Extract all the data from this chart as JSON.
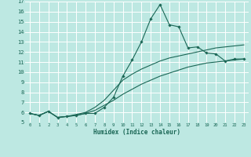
{
  "xlabel": "Humidex (Indice chaleur)",
  "bg_color": "#bde8e2",
  "grid_color": "#ffffff",
  "line_color": "#1a6655",
  "xlim": [
    -0.5,
    23.5
  ],
  "ylim": [
    5,
    17
  ],
  "xticks": [
    0,
    1,
    2,
    3,
    4,
    5,
    6,
    7,
    8,
    9,
    10,
    11,
    12,
    13,
    14,
    15,
    16,
    17,
    18,
    19,
    20,
    21,
    22,
    23
  ],
  "yticks": [
    5,
    6,
    7,
    8,
    9,
    10,
    11,
    12,
    13,
    14,
    15,
    16,
    17
  ],
  "line1_x": [
    0,
    1,
    2,
    3,
    4,
    5,
    6,
    7,
    8,
    9,
    10,
    11,
    12,
    13,
    14,
    15,
    16,
    17,
    18,
    19,
    20,
    21,
    22,
    23
  ],
  "line1_y": [
    5.9,
    5.7,
    6.1,
    5.5,
    5.6,
    5.7,
    5.9,
    5.9,
    6.5,
    7.5,
    9.6,
    11.2,
    13.0,
    15.3,
    16.7,
    14.7,
    14.5,
    12.4,
    12.5,
    11.9,
    11.8,
    11.1,
    11.3,
    11.3
  ],
  "line2_x": [
    0,
    1,
    2,
    3,
    4,
    5,
    6,
    7,
    8,
    9,
    10,
    11,
    12,
    13,
    14,
    15,
    16,
    17,
    18,
    19,
    20,
    21,
    22,
    23
  ],
  "line2_y": [
    5.9,
    5.7,
    6.1,
    5.5,
    5.6,
    5.8,
    6.0,
    6.5,
    7.2,
    8.2,
    9.2,
    9.8,
    10.3,
    10.7,
    11.1,
    11.4,
    11.6,
    11.8,
    12.0,
    12.2,
    12.4,
    12.5,
    12.6,
    12.7
  ],
  "line3_x": [
    0,
    1,
    2,
    3,
    4,
    5,
    6,
    7,
    8,
    9,
    10,
    11,
    12,
    13,
    14,
    15,
    16,
    17,
    18,
    19,
    20,
    21,
    22,
    23
  ],
  "line3_y": [
    5.9,
    5.7,
    6.1,
    5.5,
    5.6,
    5.7,
    5.9,
    6.2,
    6.7,
    7.2,
    7.8,
    8.3,
    8.8,
    9.2,
    9.6,
    9.9,
    10.2,
    10.5,
    10.7,
    10.9,
    11.0,
    11.1,
    11.2,
    11.3
  ]
}
